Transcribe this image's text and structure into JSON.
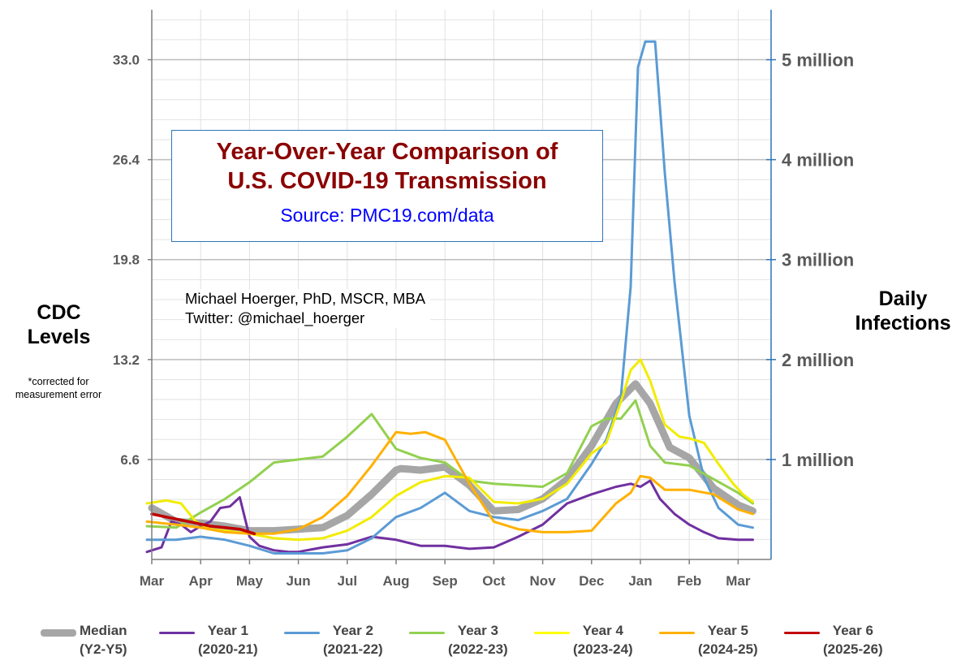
{
  "title": {
    "line1": "Year-Over-Year Comparison of",
    "line2": "U.S. COVID-19 Transmission",
    "source": "Source: PMC19.com/data"
  },
  "credit": {
    "name": "Michael Hoerger, PhD, MSCR, MBA",
    "twitter": "Twitter: @michael_hoerger"
  },
  "axes": {
    "left_title_1": "CDC",
    "left_title_2": "Levels",
    "left_note": "*corrected for measurement error",
    "right_title_1": "Daily",
    "right_title_2": "Infections"
  },
  "legend": [
    {
      "line1": "Median",
      "line2": "(Y2-Y5)",
      "color": "#A6A6A6"
    },
    {
      "line1": "Year 1",
      "line2": "(2020-21)",
      "color": "#7030A0"
    },
    {
      "line1": "Year 2",
      "line2": "(2021-22)",
      "color": "#5B9BD5"
    },
    {
      "line1": "Year 3",
      "line2": "(2022-23)",
      "color": "#92D050"
    },
    {
      "line1": "Year 4",
      "line2": "(2023-24)",
      "color": "#FFFF00"
    },
    {
      "line1": "Year 5",
      "line2": "(2024-25)",
      "color": "#FFB000"
    },
    {
      "line1": "Year 6",
      "line2": "(2025-26)",
      "color": "#C00000"
    }
  ],
  "chart_data": {
    "type": "line",
    "title": "Year-Over-Year Comparison of U.S. COVID-19 Transmission",
    "subtitle": "Source: PMC19.com/data",
    "x_ticks": [
      "Mar",
      "Apr",
      "May",
      "Jun",
      "Jul",
      "Aug",
      "Sep",
      "Oct",
      "Nov",
      "Dec",
      "Jan",
      "Feb",
      "Mar"
    ],
    "x_unit": "months since March 1",
    "xlim": [
      0,
      12.3
    ],
    "ylabel": "CDC Levels",
    "y_ticks": [
      6.6,
      13.2,
      19.8,
      26.4,
      33.0
    ],
    "ylim": [
      0,
      36.2
    ],
    "y2label": "Daily Infections",
    "y2_ticks": [
      "1 million",
      "2 million",
      "3 million",
      "4 million",
      "5 million"
    ],
    "y2_values": [
      1000000,
      2000000,
      3000000,
      4000000,
      5000000
    ],
    "grid": true,
    "legend_position": "bottom",
    "series": [
      {
        "name": "Median (Y2-Y5)",
        "color": "#A6A6A6",
        "width": 9,
        "x": [
          0,
          0.5,
          1,
          1.5,
          2,
          2.5,
          3,
          3.5,
          4,
          4.5,
          5,
          5.1,
          5.5,
          6,
          6.5,
          7,
          7.5,
          8,
          8.5,
          9,
          9.5,
          9.9,
          10.2,
          10.6,
          11,
          11.5,
          12,
          12.3
        ],
        "y": [
          3.4,
          2.5,
          2.4,
          2.2,
          1.9,
          1.9,
          2.0,
          2.1,
          2.9,
          4.3,
          5.9,
          6.0,
          5.9,
          6.1,
          4.9,
          3.2,
          3.3,
          4.0,
          5.3,
          7.5,
          10.3,
          11.6,
          10.3,
          7.4,
          6.7,
          4.7,
          3.6,
          3.2
        ]
      },
      {
        "name": "Year 1 (2020-21)",
        "color": "#7030A0",
        "width": 3,
        "x": [
          -0.1,
          0.2,
          0.4,
          0.6,
          0.8,
          1.0,
          1.2,
          1.4,
          1.6,
          1.8,
          2.0,
          2.2,
          2.5,
          2.8,
          3.0,
          3.5,
          4.0,
          4.5,
          5.0,
          5.5,
          6.0,
          6.5,
          7.0,
          7.5,
          8.0,
          8.5,
          9.0,
          9.5,
          9.8,
          10.0,
          10.2,
          10.4,
          10.7,
          11,
          11.3,
          11.6,
          12,
          12.3
        ],
        "y": [
          0.5,
          0.8,
          2.5,
          2.3,
          1.8,
          2.2,
          2.5,
          3.4,
          3.5,
          4.1,
          1.5,
          0.9,
          0.6,
          0.5,
          0.5,
          0.8,
          1.0,
          1.5,
          1.3,
          0.9,
          0.9,
          0.7,
          0.8,
          1.5,
          2.3,
          3.7,
          4.3,
          4.8,
          5.0,
          4.8,
          5.2,
          4.0,
          3.0,
          2.3,
          1.8,
          1.4,
          1.3,
          1.3
        ]
      },
      {
        "name": "Year 2 (2021-22)",
        "color": "#5B9BD5",
        "width": 3,
        "x": [
          -0.1,
          0.5,
          1.0,
          1.5,
          2.0,
          2.5,
          3.0,
          3.5,
          4.0,
          4.5,
          5.0,
          5.5,
          6.0,
          6.5,
          7.0,
          7.5,
          8.0,
          8.5,
          9.0,
          9.3,
          9.6,
          9.8,
          9.95,
          10.1,
          10.3,
          10.5,
          10.7,
          11,
          11.3,
          11.6,
          12.0,
          12.3
        ],
        "y": [
          1.3,
          1.3,
          1.5,
          1.3,
          0.9,
          0.4,
          0.4,
          0.4,
          0.6,
          1.4,
          2.8,
          3.4,
          4.4,
          3.2,
          2.8,
          2.6,
          3.2,
          4.0,
          6.3,
          7.9,
          10.7,
          18.0,
          32.5,
          34.2,
          34.2,
          25.5,
          18.3,
          9.5,
          5.4,
          3.4,
          2.3,
          2.1
        ]
      },
      {
        "name": "Year 3 (2022-23)",
        "color": "#92D050",
        "width": 3,
        "x": [
          -0.1,
          0.5,
          1.0,
          1.5,
          2.0,
          2.5,
          3.0,
          3.5,
          4.0,
          4.5,
          5.0,
          5.5,
          6.0,
          6.5,
          7.0,
          7.5,
          8.0,
          8.5,
          9.0,
          9.3,
          9.6,
          9.9,
          10.2,
          10.5,
          11,
          11.5,
          12,
          12.3
        ],
        "y": [
          2.2,
          2.1,
          3.1,
          4.0,
          5.1,
          6.4,
          6.6,
          6.8,
          8.1,
          9.6,
          7.3,
          6.7,
          6.4,
          5.2,
          5.0,
          4.9,
          4.8,
          5.7,
          8.8,
          9.3,
          9.3,
          10.5,
          7.5,
          6.4,
          6.2,
          5.3,
          4.4,
          3.7
        ]
      },
      {
        "name": "Year 4 (2023-24)",
        "color": "#FFFF00",
        "width": 3,
        "x": [
          -0.1,
          0.3,
          0.6,
          0.9,
          1.2,
          1.5,
          2.0,
          2.5,
          3.0,
          3.5,
          4.0,
          4.5,
          5.0,
          5.5,
          6.0,
          6.5,
          7.0,
          7.5,
          8.0,
          8.5,
          9.0,
          9.3,
          9.6,
          9.8,
          10.0,
          10.2,
          10.5,
          10.8,
          11,
          11.3,
          11.6,
          11.9,
          12.1,
          12.3
        ],
        "y": [
          3.7,
          3.9,
          3.7,
          2.5,
          2.0,
          1.9,
          1.7,
          1.4,
          1.3,
          1.4,
          1.9,
          2.8,
          4.2,
          5.1,
          5.5,
          5.4,
          3.8,
          3.7,
          4.0,
          5.0,
          7.0,
          7.7,
          10.4,
          12.5,
          13.2,
          11.8,
          8.9,
          8.1,
          8.0,
          7.7,
          6.3,
          5.0,
          4.3,
          3.8
        ]
      },
      {
        "name": "Year 5 (2024-25)",
        "color": "#FFB000",
        "width": 3,
        "x": [
          -0.1,
          0.5,
          1.0,
          1.5,
          2.0,
          2.5,
          3.0,
          3.5,
          4.0,
          4.5,
          5.0,
          5.3,
          5.6,
          6.0,
          6.5,
          7.0,
          7.5,
          8.0,
          8.5,
          9.0,
          9.5,
          9.8,
          10.0,
          10.2,
          10.5,
          11,
          11.5,
          12,
          12.3
        ],
        "y": [
          2.5,
          2.3,
          2.1,
          1.8,
          1.7,
          1.7,
          2.0,
          2.8,
          4.2,
          6.2,
          8.4,
          8.3,
          8.4,
          7.9,
          5.0,
          2.5,
          2.0,
          1.8,
          1.8,
          1.9,
          3.7,
          4.4,
          5.5,
          5.4,
          4.6,
          4.6,
          4.3,
          3.3,
          3.0
        ]
      },
      {
        "name": "Year 6 (2025-26)",
        "color": "#C00000",
        "width": 3.5,
        "x": [
          0.0,
          0.3,
          0.6,
          0.9,
          1.2,
          1.5,
          1.8,
          2.1
        ],
        "y": [
          3.0,
          2.8,
          2.6,
          2.4,
          2.2,
          2.1,
          2.0,
          1.7
        ]
      }
    ]
  }
}
